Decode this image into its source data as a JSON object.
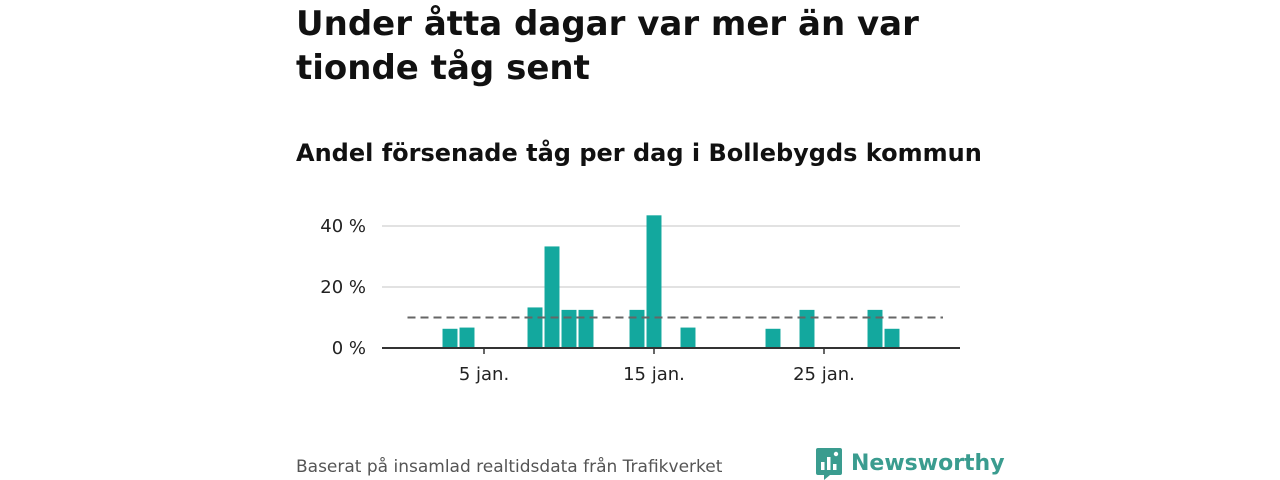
{
  "chart_data": {
    "type": "bar",
    "title": "Under åtta dagar var mer än var tionde tåg sent",
    "subtitle": "Andel försenade tåg per dag i Bollebygds kommun",
    "x_unit": "day of January",
    "x_days": [
      3,
      4,
      8,
      9,
      10,
      11,
      14,
      15,
      17,
      22,
      24,
      28,
      29
    ],
    "values": [
      6.3,
      6.7,
      13.3,
      33.3,
      12.5,
      12.5,
      12.5,
      43.5,
      6.7,
      6.3,
      12.5,
      12.5,
      6.3
    ],
    "x_ticks": [
      5,
      15,
      25
    ],
    "x_tick_labels": [
      "5 jan.",
      "15 jan.",
      "25 jan."
    ],
    "x_range": [
      -1,
      33
    ],
    "y_ticks": [
      0,
      20,
      40
    ],
    "y_tick_labels": [
      "0 %",
      "20 %",
      "40 %"
    ],
    "ylim": [
      0,
      40
    ],
    "reference_line": 10,
    "grid": true,
    "colors": {
      "bar": "#13a89e",
      "reference": "#666666",
      "grid": "#d9d9d9",
      "axis": "#333333"
    }
  },
  "footer": {
    "source": "Baserat på insamlad realtidsdata från Trafikverket",
    "brand": "Newsworthy",
    "brand_icon": "bar-chart-icon",
    "brand_color": "#3a9c8f"
  }
}
